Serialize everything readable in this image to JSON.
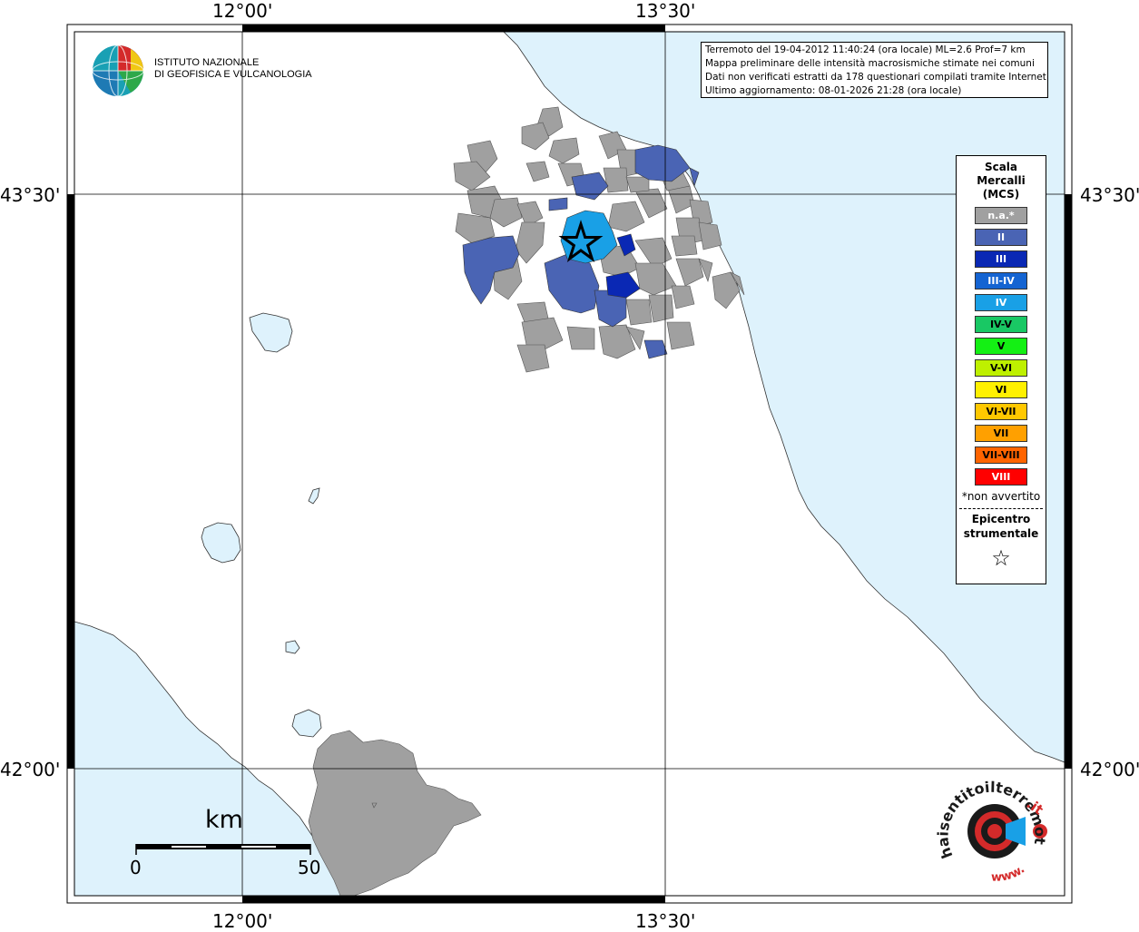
{
  "coordinates": {
    "top_left": "12°00'",
    "top_right": "13°30'",
    "bottom_left": "12°00'",
    "bottom_right": "13°30'",
    "left_upper": "43°30'",
    "left_lower": "42°00'",
    "right_upper": "43°30'",
    "right_lower": "42°00'"
  },
  "logo": {
    "line1": "ISTITUTO NAZIONALE",
    "line2": "DI GEOFISICA E VULCANOLOGIA"
  },
  "info": {
    "line1": "Terremoto del 19-04-2012 11:40:24 (ora locale) ML=2.6 Prof=7 km",
    "line2": "Mappa preliminare delle intensità macrosismiche stimate nei comuni",
    "line3": "Dati non verificati estratti da 178 questionari compilati tramite Internet.",
    "line4": "Ultimo aggiornamento: 08-01-2026 21:28 (ora locale)"
  },
  "legend": {
    "title1": "Scala",
    "title2": "Mercalli",
    "title3": "(MCS)",
    "items": [
      {
        "label": "n.a.*",
        "color": "#a0a0a0",
        "text_color": "#ffffff"
      },
      {
        "label": "II",
        "color": "#4a64b4",
        "text_color": "#ffffff"
      },
      {
        "label": "III",
        "color": "#0a28b4",
        "text_color": "#ffffff"
      },
      {
        "label": "III-IV",
        "color": "#1464d2",
        "text_color": "#ffffff"
      },
      {
        "label": "IV",
        "color": "#19a0e6",
        "text_color": "#ffffff"
      },
      {
        "label": "IV-V",
        "color": "#19c864",
        "text_color": "#000000"
      },
      {
        "label": "V",
        "color": "#14f014",
        "text_color": "#000000"
      },
      {
        "label": "V-VI",
        "color": "#bef000",
        "text_color": "#000000"
      },
      {
        "label": "VI",
        "color": "#fff000",
        "text_color": "#000000"
      },
      {
        "label": "VI-VII",
        "color": "#ffc800",
        "text_color": "#000000"
      },
      {
        "label": "VII",
        "color": "#ffa000",
        "text_color": "#000000"
      },
      {
        "label": "VII-VIII",
        "color": "#ff6400",
        "text_color": "#000000"
      },
      {
        "label": "VIII",
        "color": "#ff0000",
        "text_color": "#ffffff"
      }
    ],
    "note": "*non avvertito",
    "epicenter1": "Epicentro",
    "epicenter2": "strumentale",
    "star": "☆"
  },
  "scale_bar": {
    "unit": "km",
    "start": "0",
    "end": "50"
  },
  "watermark": {
    "text_main": "haisentitoilterremoto",
    "text_accent": ".it",
    "text_prefix": "www."
  },
  "colors": {
    "sea": "#def2fc",
    "land": "#ffffff",
    "na": "#a0a0a0",
    "ii": "#4a64b4",
    "iii": "#0a28b4",
    "iv": "#19a0e6"
  }
}
